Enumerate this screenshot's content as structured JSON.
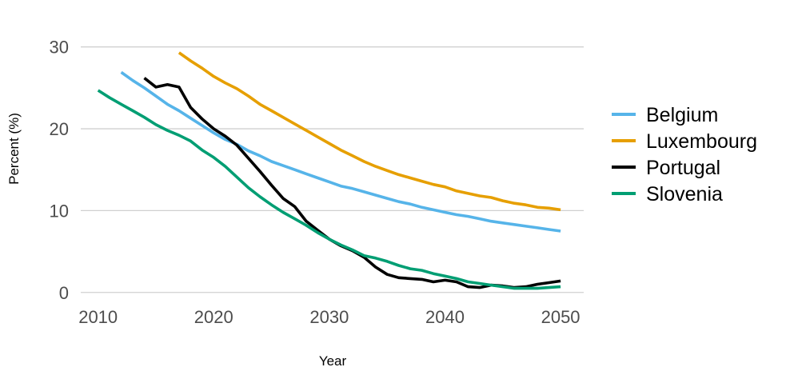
{
  "chart_data": {
    "type": "line",
    "title": "",
    "xlabel": "Year",
    "ylabel": "Percent (%)",
    "xlim": [
      2008.5,
      2052
    ],
    "ylim": [
      -1,
      33
    ],
    "xticks": [
      2010,
      2020,
      2030,
      2040,
      2050
    ],
    "yticks": [
      0,
      10,
      20,
      30
    ],
    "grid": "horizontal",
    "legend": "right",
    "series": [
      {
        "name": "Belgium",
        "color": "#56B4E9",
        "x": [
          2012,
          2013,
          2014,
          2015,
          2016,
          2017,
          2018,
          2019,
          2020,
          2021,
          2022,
          2023,
          2024,
          2025,
          2026,
          2027,
          2028,
          2029,
          2030,
          2031,
          2032,
          2033,
          2034,
          2035,
          2036,
          2037,
          2038,
          2039,
          2040,
          2041,
          2042,
          2043,
          2044,
          2045,
          2046,
          2047,
          2048,
          2049,
          2050
        ],
        "y": [
          26.9,
          25.9,
          25.0,
          24.0,
          23.0,
          22.2,
          21.3,
          20.4,
          19.5,
          18.7,
          18.1,
          17.3,
          16.7,
          16.0,
          15.5,
          15.0,
          14.5,
          14.0,
          13.5,
          13.0,
          12.7,
          12.3,
          11.9,
          11.5,
          11.1,
          10.8,
          10.4,
          10.1,
          9.8,
          9.5,
          9.3,
          9.0,
          8.7,
          8.5,
          8.3,
          8.1,
          7.9,
          7.7,
          7.5
        ]
      },
      {
        "name": "Luxembourg",
        "color": "#E69F00",
        "x": [
          2017,
          2018,
          2019,
          2020,
          2021,
          2022,
          2023,
          2024,
          2025,
          2026,
          2027,
          2028,
          2029,
          2030,
          2031,
          2032,
          2033,
          2034,
          2035,
          2036,
          2037,
          2038,
          2039,
          2040,
          2041,
          2042,
          2043,
          2044,
          2045,
          2046,
          2047,
          2048,
          2049,
          2050
        ],
        "y": [
          29.3,
          28.3,
          27.4,
          26.4,
          25.6,
          24.9,
          24.0,
          23.0,
          22.2,
          21.4,
          20.6,
          19.8,
          19.0,
          18.2,
          17.4,
          16.7,
          16.0,
          15.4,
          14.9,
          14.4,
          14.0,
          13.6,
          13.2,
          12.9,
          12.4,
          12.1,
          11.8,
          11.6,
          11.2,
          10.9,
          10.7,
          10.4,
          10.3,
          10.1
        ]
      },
      {
        "name": "Portugal",
        "color": "#000000",
        "x": [
          2014,
          2015,
          2016,
          2017,
          2018,
          2019,
          2020,
          2021,
          2022,
          2023,
          2024,
          2025,
          2026,
          2027,
          2028,
          2029,
          2030,
          2031,
          2032,
          2033,
          2034,
          2035,
          2036,
          2037,
          2038,
          2039,
          2040,
          2041,
          2042,
          2043,
          2044,
          2045,
          2046,
          2047,
          2048,
          2049,
          2050
        ],
        "y": [
          26.2,
          25.1,
          25.4,
          25.1,
          22.6,
          21.2,
          20.0,
          19.1,
          18.0,
          16.4,
          14.8,
          13.1,
          11.5,
          10.5,
          8.7,
          7.6,
          6.5,
          5.7,
          5.1,
          4.3,
          3.1,
          2.2,
          1.8,
          1.7,
          1.6,
          1.3,
          1.5,
          1.3,
          0.7,
          0.6,
          0.9,
          0.8,
          0.6,
          0.7,
          1.0,
          1.2,
          1.4
        ]
      },
      {
        "name": "Slovenia",
        "color": "#009E73",
        "x": [
          2010,
          2011,
          2012,
          2013,
          2014,
          2015,
          2016,
          2017,
          2018,
          2019,
          2020,
          2021,
          2022,
          2023,
          2024,
          2025,
          2026,
          2027,
          2028,
          2029,
          2030,
          2031,
          2032,
          2033,
          2034,
          2035,
          2036,
          2037,
          2038,
          2039,
          2040,
          2041,
          2042,
          2043,
          2044,
          2045,
          2046,
          2047,
          2048,
          2049,
          2050
        ],
        "y": [
          24.7,
          23.8,
          23.0,
          22.2,
          21.4,
          20.5,
          19.8,
          19.2,
          18.5,
          17.4,
          16.5,
          15.4,
          14.1,
          12.8,
          11.7,
          10.7,
          9.8,
          9.0,
          8.2,
          7.3,
          6.5,
          5.8,
          5.2,
          4.5,
          4.2,
          3.8,
          3.3,
          2.9,
          2.7,
          2.3,
          2.0,
          1.7,
          1.3,
          1.1,
          0.9,
          0.7,
          0.5,
          0.5,
          0.5,
          0.6,
          0.7
        ]
      }
    ]
  }
}
